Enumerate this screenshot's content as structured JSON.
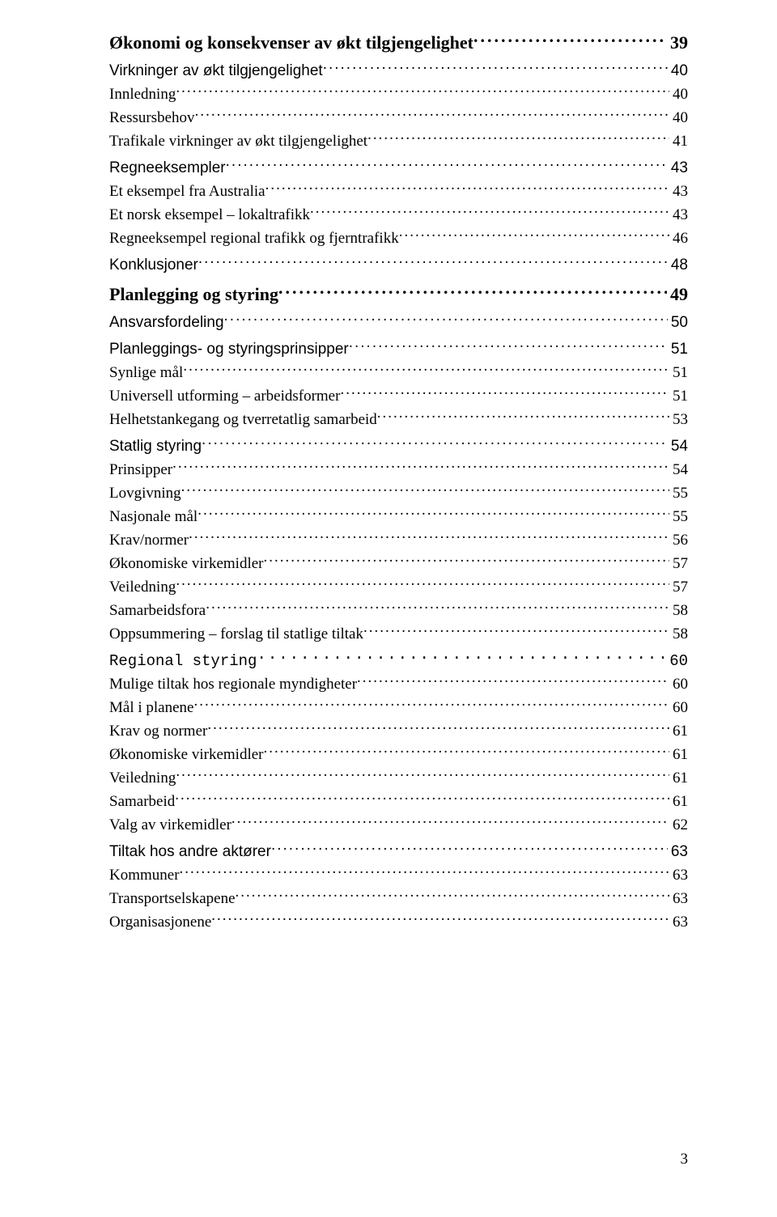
{
  "toc": [
    {
      "label": "Økonomi og konsekvenser av økt tilgjengelighet",
      "page": "39",
      "cls": "lvl-1"
    },
    {
      "label": "Virkninger av økt tilgjengelighet",
      "page": "40",
      "cls": "lvl-2"
    },
    {
      "label": "Innledning",
      "page": "40",
      "cls": "lvl-3"
    },
    {
      "label": "Ressursbehov",
      "page": "40",
      "cls": "lvl-3"
    },
    {
      "label": "Trafikale virkninger av økt tilgjengelighet",
      "page": "41",
      "cls": "lvl-3"
    },
    {
      "label": "Regneeksempler",
      "page": "43",
      "cls": "lvl-2"
    },
    {
      "label": "Et eksempel fra Australia",
      "page": "43",
      "cls": "lvl-3"
    },
    {
      "label": "Et norsk eksempel – lokaltrafikk",
      "page": "43",
      "cls": "lvl-3"
    },
    {
      "label": "Regneeksempel regional trafikk og fjerntrafikk",
      "page": "46",
      "cls": "lvl-3"
    },
    {
      "label": "Konklusjoner",
      "page": "48",
      "cls": "lvl-2"
    },
    {
      "label": "Planlegging og styring",
      "page": "49",
      "cls": "lvl-1b"
    },
    {
      "label": "Ansvarsfordeling",
      "page": "50",
      "cls": "lvl-2"
    },
    {
      "label": "Planleggings- og styringsprinsipper",
      "page": "51",
      "cls": "lvl-2"
    },
    {
      "label": "Synlige mål",
      "page": "51",
      "cls": "lvl-3"
    },
    {
      "label": "Universell utforming – arbeidsformer",
      "page": "51",
      "cls": "lvl-3"
    },
    {
      "label": "Helhetstankegang og tverretatlig samarbeid",
      "page": "53",
      "cls": "lvl-3"
    },
    {
      "label": "Statlig styring",
      "page": "54",
      "cls": "lvl-2"
    },
    {
      "label": "Prinsipper",
      "page": "54",
      "cls": "lvl-3"
    },
    {
      "label": "Lovgivning",
      "page": "55",
      "cls": "lvl-3"
    },
    {
      "label": "Nasjonale mål",
      "page": "55",
      "cls": "lvl-3"
    },
    {
      "label": "Krav/normer",
      "page": "56",
      "cls": "lvl-3"
    },
    {
      "label": "Økonomiske virkemidler",
      "page": "57",
      "cls": "lvl-3"
    },
    {
      "label": "Veiledning",
      "page": "57",
      "cls": "lvl-3"
    },
    {
      "label": "Samarbeidsfora",
      "page": "58",
      "cls": "lvl-3"
    },
    {
      "label": "Oppsummering – forslag til statlige tiltak",
      "page": "58",
      "cls": "lvl-3"
    },
    {
      "label": "Regional styring",
      "page": "60",
      "cls": "lvl-mono"
    },
    {
      "label": "Mulige tiltak hos regionale myndigheter",
      "page": "60",
      "cls": "lvl-3"
    },
    {
      "label": "Mål i planene",
      "page": "60",
      "cls": "lvl-3"
    },
    {
      "label": "Krav og normer",
      "page": "61",
      "cls": "lvl-3"
    },
    {
      "label": "Økonomiske virkemidler",
      "page": "61",
      "cls": "lvl-3"
    },
    {
      "label": "Veiledning",
      "page": "61",
      "cls": "lvl-3"
    },
    {
      "label": "Samarbeid",
      "page": "61",
      "cls": "lvl-3"
    },
    {
      "label": "Valg av virkemidler",
      "page": "62",
      "cls": "lvl-3"
    },
    {
      "label": "Tiltak hos andre aktører",
      "page": "63",
      "cls": "lvl-2"
    },
    {
      "label": "Kommuner",
      "page": "63",
      "cls": "lvl-3"
    },
    {
      "label": "Transportselskapene",
      "page": "63",
      "cls": "lvl-3"
    },
    {
      "label": "Organisasjonene",
      "page": "63",
      "cls": "lvl-3"
    }
  ],
  "pageNumber": "3",
  "colors": {
    "background": "#ffffff",
    "text": "#000000"
  }
}
